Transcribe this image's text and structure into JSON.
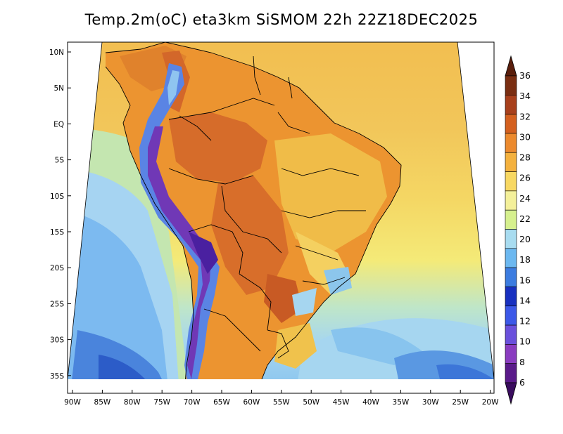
{
  "title": "Temp.2m(oC) eta3km SiSMOM 22h 22Z18DEC2025",
  "lat_labels": [
    "10N",
    "5N",
    "EQ",
    "5S",
    "10S",
    "15S",
    "20S",
    "25S",
    "30S",
    "35S"
  ],
  "lon_labels": [
    "90W",
    "85W",
    "80W",
    "75W",
    "70W",
    "65W",
    "60W",
    "55W",
    "50W",
    "45W",
    "40W",
    "35W",
    "30W",
    "25W",
    "20W"
  ],
  "colorbar": {
    "labels": [
      "36",
      "34",
      "32",
      "30",
      "28",
      "26",
      "24",
      "22",
      "20",
      "18",
      "16",
      "14",
      "12",
      "10",
      "8",
      "6"
    ],
    "colors": [
      "#5a1e0c",
      "#7a2e12",
      "#a8401c",
      "#d4601f",
      "#ec8a2e",
      "#f4b13e",
      "#f8d862",
      "#f4f09a",
      "#d6f08e",
      "#a8dcf0",
      "#6cb8f0",
      "#3c7ce0",
      "#1830c0",
      "#3c58e8",
      "#6a50dc",
      "#8a3cc0",
      "#5a1a8a",
      "#3a0c5e"
    ]
  },
  "map_colors": {
    "ocean_north": "#f2c657",
    "ocean_central": "#f4e26c",
    "ocean_south": "#a6d6f0",
    "ocean_deep": "#4a86d8",
    "land_warm": "#eb9432",
    "land_hot": "#d3672a",
    "land_mild": "#f4c24a",
    "andes": "#5a7ae6",
    "andes_cold": "#6a2ab0"
  }
}
